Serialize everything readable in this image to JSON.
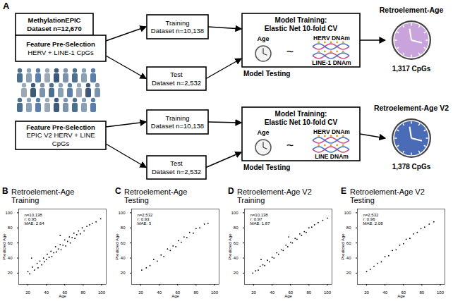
{
  "diagram": {
    "panel": "A",
    "dataset_box": [
      "MethylationEPIC",
      "Dataset n=12,670"
    ],
    "pipelines": [
      {
        "feature_box": [
          "Feature Pre-Selection",
          "HERV + LINE-1 CpGs"
        ],
        "training_box": [
          "Training",
          "Dataset n=10,138"
        ],
        "test_box": [
          "Test",
          "Dataset n=2,532"
        ],
        "model_box": {
          "title": "Model Training:",
          "subtitle": "Elastic Net 10-fold CV",
          "age": "Age",
          "relation": "~",
          "features": [
            "HERV DNAm",
            "LINE-1 DNAm"
          ]
        },
        "testing_label": "Model Testing",
        "clock": {
          "title": "Retroelement-Age",
          "cpgs": "1,317 CpGs"
        }
      },
      {
        "feature_box": [
          "Feature Pre-Selection",
          "EPIC V2 HERV + LINE",
          "CpGs"
        ],
        "training_box": [
          "Training",
          "Dataset n=10,138"
        ],
        "test_box": [
          "Test",
          "Dataset n=2,532"
        ],
        "model_box": {
          "title": "Model Training:",
          "subtitle": "Elastic Net 10-fold CV",
          "age": "Age",
          "relation": "~",
          "features": [
            "HERV DNAm",
            "LINE DNAm"
          ]
        },
        "testing_label": "Model Testing",
        "clock": {
          "title": "Retroelement-Age V2",
          "cpgs": "1,378 CpGs"
        }
      }
    ]
  },
  "chart_data": [
    {
      "type": "scatter",
      "panel": "B",
      "title": "Retroelement-Age",
      "subtitle": "Training",
      "x_label": "Age",
      "y_label": "Predicted Age",
      "annotations": [
        "n=10,138",
        "r: 0.95",
        "MAE: 2.64"
      ],
      "x": [
        20,
        22,
        24,
        25,
        27,
        30,
        31,
        33,
        35,
        37,
        38,
        40,
        41,
        43,
        45,
        46,
        48,
        50,
        51,
        53,
        55,
        55,
        56,
        58,
        60,
        61,
        63,
        65,
        66,
        68,
        70,
        71,
        73,
        75,
        77,
        79,
        81,
        84,
        87,
        90,
        94,
        99
      ],
      "values": [
        22,
        19,
        40,
        28,
        24,
        33,
        27,
        36,
        31,
        40,
        35,
        38,
        45,
        41,
        49,
        42,
        47,
        55,
        48,
        52,
        58,
        70,
        51,
        57,
        64,
        56,
        62,
        68,
        60,
        67,
        73,
        66,
        71,
        76,
        72,
        80,
        76,
        82,
        84,
        86,
        88,
        92
      ],
      "color": "#000000",
      "xlim": [
        10,
        105
      ],
      "ylim": [
        5,
        105
      ],
      "xticks": [
        20,
        40,
        60,
        80,
        100
      ],
      "yticks": [
        20,
        40,
        60,
        80,
        100
      ]
    },
    {
      "type": "scatter",
      "panel": "C",
      "title": "Retroelement-Age",
      "subtitle": "Testing",
      "x_label": "Age",
      "y_label": "Predicted Age",
      "annotations": [
        "n=2,532",
        "r: 0.93",
        "MAE: 3"
      ],
      "x": [
        21,
        26,
        30,
        34,
        38,
        42,
        45,
        49,
        52,
        55,
        58,
        61,
        64,
        67,
        70,
        73,
        77,
        80,
        84,
        89,
        93
      ],
      "values": [
        24,
        27,
        30,
        38,
        36,
        44,
        42,
        52,
        50,
        56,
        55,
        63,
        61,
        68,
        67,
        74,
        73,
        79,
        80,
        85,
        86
      ],
      "color": "#000000",
      "xlim": [
        10,
        105
      ],
      "ylim": [
        5,
        105
      ],
      "xticks": [
        20,
        40,
        60,
        80,
        100
      ],
      "yticks": [
        20,
        40,
        60,
        80,
        100
      ]
    },
    {
      "type": "scatter",
      "panel": "D",
      "title": "Retroelement-Age V2",
      "subtitle": "Training",
      "x_label": "Age",
      "y_label": "Predicted Age",
      "annotations": [
        "n=10,138",
        "r: 0.97",
        "MAE: 1.87"
      ],
      "x": [
        19,
        22,
        25,
        27,
        28,
        30,
        32,
        35,
        37,
        40,
        42,
        45,
        47,
        50,
        52,
        55,
        57,
        58,
        60,
        62,
        65,
        67,
        70,
        72,
        75,
        77,
        80,
        83,
        86,
        90,
        95,
        100
      ],
      "values": [
        20,
        23,
        24,
        29,
        38,
        31,
        30,
        37,
        35,
        41,
        40,
        47,
        45,
        51,
        50,
        57,
        55,
        68,
        61,
        60,
        66,
        65,
        72,
        70,
        75,
        74,
        80,
        81,
        84,
        87,
        90,
        93
      ],
      "color": "#000000",
      "xlim": [
        10,
        105
      ],
      "ylim": [
        5,
        105
      ],
      "xticks": [
        20,
        40,
        60,
        80,
        100
      ],
      "yticks": [
        20,
        40,
        60,
        80,
        100
      ]
    },
    {
      "type": "scatter",
      "panel": "E",
      "title": "Retroelement-Age V2",
      "subtitle": "Testing",
      "x_label": "Age",
      "y_label": "Predicted Age",
      "annotations": [
        "n=2,532",
        "r: 0.96",
        "MAE: 2.08"
      ],
      "x": [
        20,
        24,
        28,
        32,
        36,
        40,
        44,
        48,
        52,
        56,
        60,
        63,
        67,
        71,
        75,
        79,
        83,
        88,
        93
      ],
      "values": [
        22,
        25,
        29,
        33,
        35,
        42,
        43,
        50,
        51,
        57,
        59,
        65,
        66,
        72,
        74,
        79,
        81,
        85,
        88
      ],
      "color": "#000000",
      "xlim": [
        10,
        105
      ],
      "ylim": [
        5,
        105
      ],
      "xticks": [
        20,
        40,
        60,
        80,
        100
      ],
      "yticks": [
        20,
        40,
        60,
        80,
        100
      ]
    }
  ]
}
